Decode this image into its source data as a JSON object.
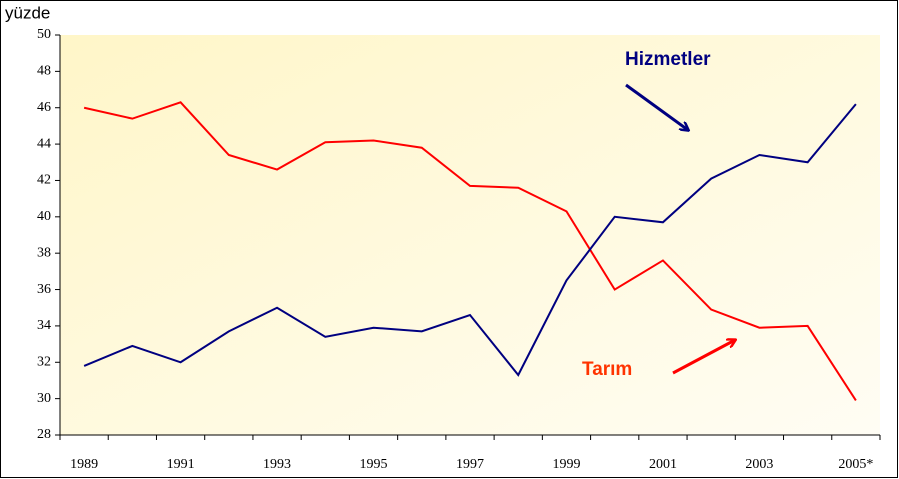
{
  "chart_data": {
    "type": "line",
    "y_label": "yüzde",
    "categories": [
      "1989",
      null,
      "1991",
      null,
      "1993",
      null,
      "1995",
      null,
      "1997",
      null,
      "1999",
      null,
      "2001",
      null,
      "2003",
      null,
      "2005*"
    ],
    "series": [
      {
        "name": "Tarım",
        "color": "#ff0000",
        "values": [
          46.0,
          45.4,
          46.3,
          43.4,
          42.6,
          44.1,
          44.2,
          43.8,
          41.7,
          41.6,
          40.3,
          36.0,
          37.6,
          34.9,
          33.9,
          34.0,
          29.9
        ]
      },
      {
        "name": "Hizmetler",
        "color": "#000080",
        "values": [
          31.8,
          32.9,
          32.0,
          33.7,
          35.0,
          33.4,
          33.9,
          33.7,
          34.6,
          31.3,
          36.5,
          40.0,
          39.7,
          42.1,
          43.4,
          43.0,
          46.2
        ]
      }
    ],
    "ylim": [
      28,
      50
    ],
    "yticks": [
      28,
      30,
      32,
      34,
      36,
      38,
      40,
      42,
      44,
      46,
      48,
      50
    ]
  }
}
